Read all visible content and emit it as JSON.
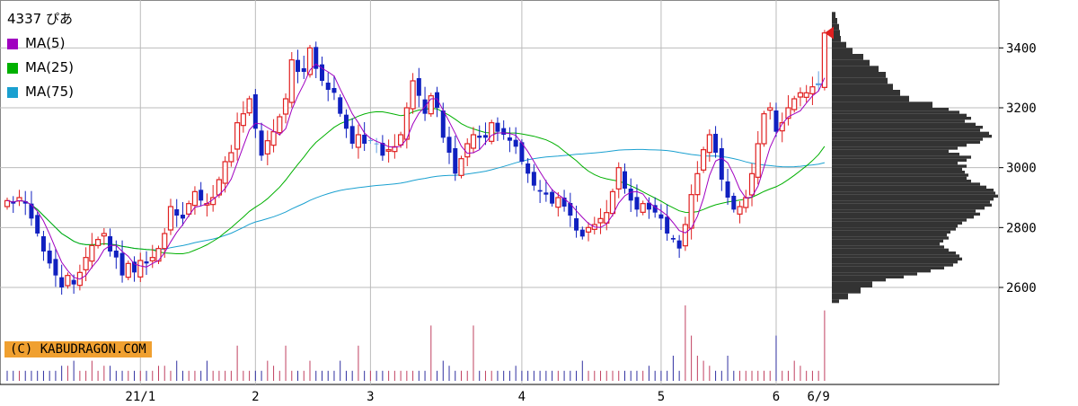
{
  "stock": {
    "code": "4337",
    "name": "ぴあ"
  },
  "legend": [
    {
      "label": "MA(5)",
      "color": "#a000c0"
    },
    {
      "label": "MA(25)",
      "color": "#00b000"
    },
    {
      "label": "MA(75)",
      "color": "#1aa0d0"
    }
  ],
  "copyright": "(C) KABUDRAGON.COM",
  "last_date_label": "6/9",
  "chart_data": {
    "type": "candlestick",
    "title": "4337 ぴあ",
    "ylim": [
      2540,
      3560
    ],
    "yticks": [
      2600,
      2800,
      3000,
      3200,
      3400
    ],
    "xticks": [
      {
        "label": "21/1",
        "index": 22
      },
      {
        "label": "2",
        "index": 41
      },
      {
        "label": "3",
        "index": 60
      },
      {
        "label": "4",
        "index": 85
      },
      {
        "label": "5",
        "index": 108
      },
      {
        "label": "6",
        "index": 127
      },
      {
        "label": "6/9",
        "index": 134
      }
    ],
    "colors": {
      "up": "#e02020",
      "down": "#1020c0",
      "doji": "#60a0e0",
      "ma5": "#a000c0",
      "ma25": "#00b000",
      "ma75": "#1aa0d0",
      "profile": "#333333",
      "marker": "#e02020"
    },
    "close": [
      2890,
      2880,
      2900,
      2880,
      2830,
      2780,
      2720,
      2680,
      2640,
      2600,
      2640,
      2610,
      2650,
      2700,
      2740,
      2760,
      2780,
      2720,
      2700,
      2640,
      2680,
      2650,
      2690,
      2680,
      2700,
      2730,
      2780,
      2870,
      2840,
      2830,
      2880,
      2920,
      2890,
      2880,
      2900,
      2960,
      3020,
      3050,
      3150,
      3180,
      3230,
      3130,
      3040,
      3090,
      3120,
      3170,
      3230,
      3360,
      3320,
      3320,
      3400,
      3330,
      3290,
      3260,
      3250,
      3180,
      3130,
      3080,
      3110,
      3080,
      3090,
      3080,
      3040,
      3060,
      3070,
      3110,
      3200,
      3290,
      3240,
      3180,
      3240,
      3200,
      3100,
      3050,
      2980,
      3030,
      3080,
      3110,
      3100,
      3100,
      3150,
      3120,
      3110,
      3090,
      3070,
      3020,
      2980,
      2940,
      2920,
      2910,
      2880,
      2900,
      2870,
      2840,
      2790,
      2770,
      2800,
      2810,
      2830,
      2850,
      2920,
      3000,
      2930,
      2890,
      2860,
      2880,
      2860,
      2850,
      2830,
      2780,
      2760,
      2730,
      2810,
      2910,
      2980,
      3060,
      3110,
      3050,
      2960,
      2900,
      2860,
      2870,
      2900,
      2980,
      3080,
      3180,
      3200,
      3120,
      3150,
      3200,
      3230,
      3250,
      3250,
      3270,
      3280,
      3450
    ],
    "volume": [
      10,
      10,
      10,
      10,
      10,
      10,
      10,
      10,
      10,
      15,
      15,
      20,
      10,
      10,
      20,
      10,
      15,
      15,
      10,
      10,
      10,
      10,
      10,
      10,
      10,
      15,
      15,
      10,
      20,
      10,
      10,
      10,
      10,
      20,
      10,
      10,
      10,
      10,
      35,
      10,
      10,
      10,
      10,
      20,
      15,
      10,
      35,
      10,
      10,
      10,
      20,
      10,
      10,
      10,
      10,
      20,
      10,
      10,
      35,
      10,
      10,
      10,
      10,
      10,
      10,
      10,
      10,
      10,
      10,
      10,
      55,
      10,
      20,
      15,
      10,
      10,
      10,
      55,
      10,
      10,
      10,
      10,
      10,
      10,
      15,
      10,
      10,
      10,
      10,
      10,
      10,
      10,
      10,
      10,
      10,
      20,
      10,
      10,
      10,
      10,
      10,
      10,
      10,
      10,
      10,
      10,
      15,
      10,
      10,
      10,
      25,
      10,
      75,
      45,
      25,
      20,
      15,
      10,
      10,
      25,
      10,
      10,
      10,
      10,
      10,
      10,
      10,
      45,
      10,
      10,
      20,
      15,
      10,
      10,
      10,
      70
    ],
    "profile": [
      [
        3520,
        4
      ],
      [
        3500,
        6
      ],
      [
        3480,
        8
      ],
      [
        3460,
        9
      ],
      [
        3440,
        10
      ],
      [
        3420,
        16
      ],
      [
        3400,
        23
      ],
      [
        3380,
        35
      ],
      [
        3360,
        42
      ],
      [
        3340,
        52
      ],
      [
        3320,
        60
      ],
      [
        3300,
        62
      ],
      [
        3280,
        68
      ],
      [
        3260,
        76
      ],
      [
        3240,
        86
      ],
      [
        3220,
        112
      ],
      [
        3200,
        130
      ],
      [
        3190,
        142
      ],
      [
        3180,
        150
      ],
      [
        3170,
        155
      ],
      [
        3160,
        148
      ],
      [
        3150,
        160
      ],
      [
        3140,
        168
      ],
      [
        3130,
        165
      ],
      [
        3120,
        175
      ],
      [
        3110,
        178
      ],
      [
        3100,
        168
      ],
      [
        3090,
        165
      ],
      [
        3080,
        150
      ],
      [
        3070,
        140
      ],
      [
        3060,
        130
      ],
      [
        3050,
        142
      ],
      [
        3040,
        155
      ],
      [
        3030,
        150
      ],
      [
        3020,
        140
      ],
      [
        3010,
        150
      ],
      [
        3000,
        145
      ],
      [
        2990,
        148
      ],
      [
        2980,
        152
      ],
      [
        2970,
        150
      ],
      [
        2960,
        155
      ],
      [
        2950,
        165
      ],
      [
        2940,
        172
      ],
      [
        2930,
        180
      ],
      [
        2920,
        182
      ],
      [
        2910,
        185
      ],
      [
        2900,
        180
      ],
      [
        2890,
        176
      ],
      [
        2880,
        178
      ],
      [
        2870,
        170
      ],
      [
        2860,
        160
      ],
      [
        2850,
        165
      ],
      [
        2840,
        158
      ],
      [
        2830,
        150
      ],
      [
        2820,
        145
      ],
      [
        2810,
        140
      ],
      [
        2800,
        138
      ],
      [
        2790,
        132
      ],
      [
        2780,
        128
      ],
      [
        2770,
        130
      ],
      [
        2760,
        124
      ],
      [
        2750,
        120
      ],
      [
        2740,
        125
      ],
      [
        2730,
        130
      ],
      [
        2720,
        138
      ],
      [
        2710,
        142
      ],
      [
        2700,
        145
      ],
      [
        2690,
        140
      ],
      [
        2680,
        135
      ],
      [
        2670,
        125
      ],
      [
        2660,
        110
      ],
      [
        2650,
        95
      ],
      [
        2640,
        80
      ],
      [
        2630,
        60
      ],
      [
        2620,
        45
      ],
      [
        2600,
        32
      ],
      [
        2580,
        18
      ],
      [
        2560,
        8
      ]
    ]
  }
}
